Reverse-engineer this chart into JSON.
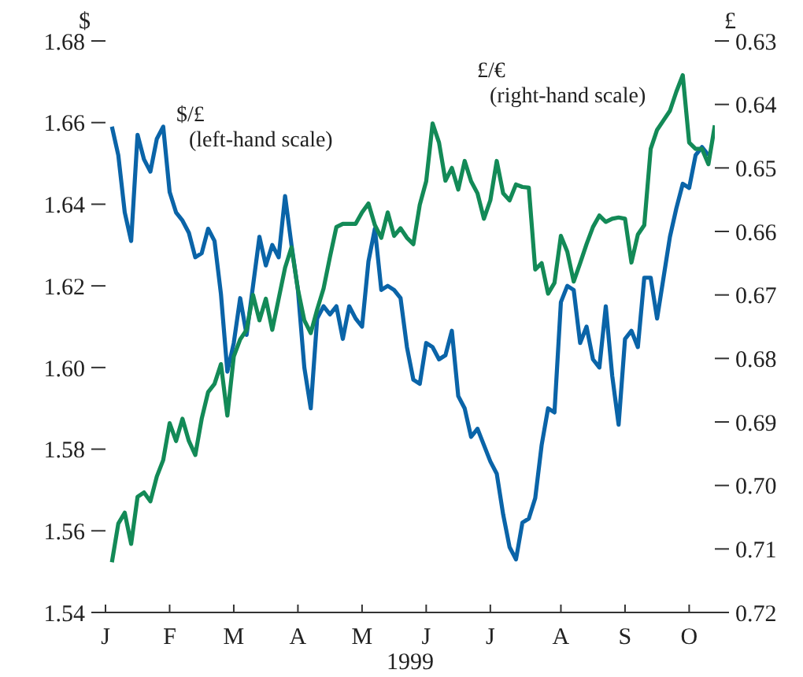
{
  "chart_data": {
    "type": "line",
    "ylabel": "$",
    "y2label": "£",
    "xlabel": "1999",
    "annotations": [
      "(left-hand scale)",
      "(right-hand scale)"
    ],
    "legend": false,
    "grid": false,
    "marker": "none",
    "line_style": "solid",
    "categories": [
      "J",
      null,
      null,
      null,
      null,
      null,
      null,
      null,
      null,
      null,
      "F",
      null,
      null,
      null,
      null,
      null,
      null,
      null,
      null,
      null,
      "M",
      null,
      null,
      null,
      null,
      null,
      null,
      null,
      null,
      null,
      "A",
      null,
      null,
      null,
      null,
      null,
      null,
      null,
      null,
      null,
      "M",
      null,
      null,
      null,
      null,
      null,
      null,
      null,
      null,
      null,
      "J",
      null,
      null,
      null,
      null,
      null,
      null,
      null,
      null,
      null,
      "J",
      null,
      null,
      null,
      null,
      null,
      null,
      null,
      null,
      null,
      null,
      "A",
      null,
      null,
      null,
      null,
      null,
      null,
      null,
      null,
      null,
      "S",
      null,
      null,
      null,
      null,
      null,
      null,
      null,
      null,
      null,
      "O",
      null,
      null,
      null,
      null
    ],
    "ylim": [
      1.54,
      1.68
    ],
    "yticks": [
      {
        "value": 1.54,
        "label": "1.54"
      },
      {
        "value": 1.56,
        "label": "1.56"
      },
      {
        "value": 1.58,
        "label": "1.58"
      },
      {
        "value": 1.6,
        "label": "1.60"
      },
      {
        "value": 1.62,
        "label": "1.62"
      },
      {
        "value": 1.64,
        "label": "1.64"
      },
      {
        "value": 1.66,
        "label": "1.66"
      },
      {
        "value": 1.68,
        "label": "1.68"
      }
    ],
    "y2lim": [
      0.72,
      0.63
    ],
    "y2ticks": [
      {
        "value": 0.63,
        "label": "0.63"
      },
      {
        "value": 0.64,
        "label": "0.64"
      },
      {
        "value": 0.65,
        "label": "0.65"
      },
      {
        "value": 0.66,
        "label": "0.66"
      },
      {
        "value": 0.67,
        "label": "0.67"
      },
      {
        "value": 0.68,
        "label": "0.68"
      },
      {
        "value": 0.69,
        "label": "0.69"
      },
      {
        "value": 0.7,
        "label": "0.70"
      },
      {
        "value": 0.71,
        "label": "0.71"
      },
      {
        "value": 0.72,
        "label": "0.72"
      }
    ],
    "series": [
      {
        "name": "$/£",
        "color": "#0a64a8",
        "values": [
          null,
          1.659,
          1.652,
          1.638,
          1.631,
          1.657,
          1.651,
          1.648,
          1.656,
          1.659,
          1.643,
          1.638,
          1.636,
          1.633,
          1.627,
          1.628,
          1.634,
          1.631,
          1.618,
          1.599,
          1.606,
          1.617,
          1.608,
          1.62,
          1.632,
          1.625,
          1.63,
          1.627,
          1.642,
          1.63,
          1.619,
          1.6,
          1.59,
          1.612,
          1.615,
          1.613,
          1.615,
          1.607,
          1.615,
          1.612,
          1.61,
          1.626,
          1.634,
          1.619,
          1.62,
          1.619,
          1.617,
          1.605,
          1.597,
          1.596,
          1.606,
          1.605,
          1.602,
          1.603,
          1.609,
          1.593,
          1.59,
          1.583,
          1.585,
          1.581,
          1.577,
          1.574,
          1.564,
          1.556,
          1.553,
          1.562,
          1.563,
          1.568,
          1.581,
          1.59,
          1.589,
          1.616,
          1.62,
          1.619,
          1.606,
          1.61,
          1.602,
          1.6,
          1.615,
          1.598,
          1.586,
          1.607,
          1.609,
          1.605,
          1.622,
          1.622,
          1.612,
          1.622,
          1.632,
          1.639,
          1.645,
          1.644,
          1.652,
          1.654,
          1.652,
          null
        ]
      },
      {
        "name": "£/€",
        "color": "#138a57",
        "axis": "y2",
        "values": [
          null,
          0.7121,
          0.706,
          0.7043,
          0.7092,
          0.7018,
          0.7011,
          0.7025,
          0.6986,
          0.696,
          0.6902,
          0.693,
          0.6895,
          0.693,
          0.6952,
          0.6895,
          0.6853,
          0.684,
          0.6809,
          0.689,
          0.6797,
          0.677,
          0.6755,
          0.67,
          0.674,
          0.6706,
          0.6755,
          0.6706,
          0.6657,
          0.6625,
          0.6691,
          0.674,
          0.676,
          0.6723,
          0.669,
          0.664,
          0.6593,
          0.6588,
          0.6588,
          0.6588,
          0.657,
          0.6556,
          0.659,
          0.661,
          0.657,
          0.6607,
          0.6595,
          0.661,
          0.662,
          0.6558,
          0.6521,
          0.643,
          0.646,
          0.652,
          0.65,
          0.6534,
          0.6489,
          0.6521,
          0.654,
          0.658,
          0.6551,
          0.6489,
          0.654,
          0.6551,
          0.6526,
          0.653,
          0.6531,
          0.666,
          0.665,
          0.6698,
          0.6681,
          0.6607,
          0.6632,
          0.6679,
          0.665,
          0.662,
          0.6593,
          0.6575,
          0.6585,
          0.658,
          0.6578,
          0.658,
          0.6649,
          0.6605,
          0.659,
          0.647,
          0.644,
          0.6425,
          0.641,
          0.638,
          0.6354,
          0.646,
          0.647,
          0.647,
          0.6494,
          0.6433
        ]
      }
    ]
  }
}
